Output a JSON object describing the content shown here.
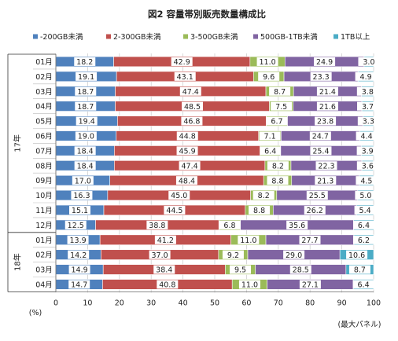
{
  "chart_data": {
    "type": "bar",
    "stacked": true,
    "orientation": "horizontal",
    "title": "図2 容量帯別販売数量構成比",
    "x_unit_label": "(%)",
    "x_tail_label": "(最大パネル)",
    "xlim": [
      0,
      100
    ],
    "x_ticks": [
      "0",
      "10",
      "20",
      "30",
      "40",
      "50",
      "60",
      "70",
      "80",
      "90",
      "100"
    ],
    "legend_position": "top",
    "group_labels": [
      "17年",
      "18年"
    ],
    "categories": [
      "01月",
      "02月",
      "03月",
      "04月",
      "05月",
      "06月",
      "07月",
      "08月",
      "09月",
      "10月",
      "11月",
      "12月",
      "01月",
      "02月",
      "03月",
      "04月"
    ],
    "category_groups": [
      0,
      0,
      0,
      0,
      0,
      0,
      0,
      0,
      0,
      0,
      0,
      0,
      1,
      1,
      1,
      1
    ],
    "series": [
      {
        "name": "-200GB未満",
        "color": "#4f81bd",
        "values": [
          18.2,
          19.1,
          18.7,
          18.7,
          19.4,
          19.0,
          18.4,
          18.4,
          17.0,
          16.3,
          15.1,
          12.5,
          13.9,
          14.2,
          14.9,
          14.7
        ]
      },
      {
        "name": "2-300GB未満",
        "color": "#c0504d",
        "values": [
          42.9,
          43.1,
          47.4,
          48.5,
          46.8,
          44.8,
          45.9,
          47.4,
          48.4,
          45.0,
          44.5,
          38.8,
          41.2,
          37.0,
          38.4,
          40.8
        ]
      },
      {
        "name": "3-500GB未満",
        "color": "#9bbb59",
        "values": [
          11.0,
          9.6,
          8.7,
          7.5,
          6.7,
          7.1,
          6.4,
          8.2,
          8.8,
          8.2,
          8.8,
          6.8,
          11.0,
          9.2,
          9.5,
          11.0
        ]
      },
      {
        "name": "500GB-1TB未満",
        "color": "#8064a2",
        "values": [
          24.9,
          23.3,
          21.4,
          21.6,
          23.8,
          24.7,
          25.4,
          22.3,
          21.3,
          25.5,
          26.2,
          35.6,
          27.7,
          29.0,
          28.5,
          27.1
        ]
      },
      {
        "name": "1TB以上",
        "color": "#4bacc6",
        "values": [
          3.0,
          4.9,
          3.8,
          3.7,
          3.3,
          4.4,
          3.9,
          3.6,
          4.5,
          5.0,
          5.4,
          6.4,
          6.2,
          10.6,
          8.7,
          6.4
        ]
      }
    ]
  }
}
